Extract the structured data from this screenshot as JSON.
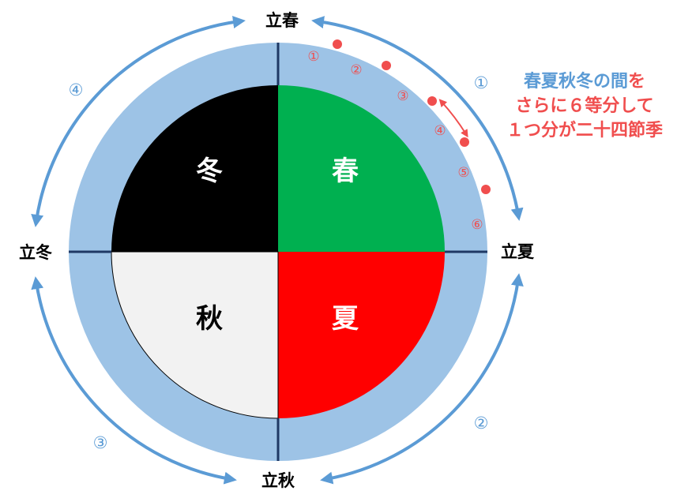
{
  "diagram": {
    "seasons": {
      "spring": {
        "label": "春",
        "color": "#00b050"
      },
      "summer": {
        "label": "夏",
        "color": "#ff0000"
      },
      "autumn": {
        "label": "秋",
        "color": "#f2f2f2"
      },
      "winter": {
        "label": "冬",
        "color": "#000000"
      }
    },
    "boundaries": {
      "top": "立春",
      "right": "立夏",
      "bottom": "立秋",
      "left": "立冬"
    },
    "period_labels": [
      "①",
      "②",
      "③",
      "④"
    ],
    "sub_labels": [
      "①",
      "②",
      "③",
      "④",
      "⑤",
      "⑥"
    ],
    "note": {
      "line1_blue": "春夏秋冬の間",
      "line1_red": "を",
      "line2": "さらに６等分して",
      "line3": "１つ分が二十四節季"
    },
    "colors": {
      "ring": "#9dc3e6",
      "arrow_blue": "#5b9bd5",
      "accent_red": "#f04e4e",
      "axis": "#1f3864"
    }
  }
}
